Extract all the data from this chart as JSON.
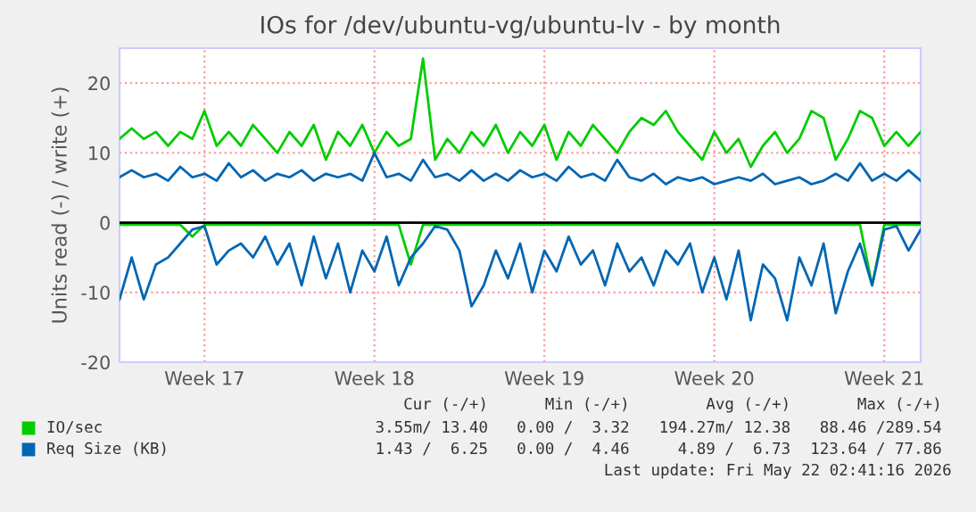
{
  "chart_data": {
    "type": "line",
    "title": "IOs for /dev/ubuntu-vg/ubuntu-lv - by month",
    "ylabel": "Units read (-) / write (+)",
    "categories": [
      null,
      null,
      null,
      null,
      null,
      null,
      null,
      "Week 17",
      null,
      null,
      null,
      null,
      null,
      null,
      null,
      null,
      null,
      null,
      null,
      null,
      null,
      "Week 18",
      null,
      null,
      null,
      null,
      null,
      null,
      null,
      null,
      null,
      null,
      null,
      null,
      null,
      "Week 19",
      null,
      null,
      null,
      null,
      null,
      null,
      null,
      null,
      null,
      null,
      null,
      null,
      null,
      "Week 20",
      null,
      null,
      null,
      null,
      null,
      null,
      null,
      null,
      null,
      null,
      null,
      null,
      null,
      "Week 21",
      null,
      null,
      null
    ],
    "series": [
      {
        "name": "IO/sec",
        "color": "#00cc00",
        "values": [
          12,
          13.5,
          12,
          13,
          11,
          13,
          12,
          16,
          11,
          13,
          11,
          14,
          12,
          10,
          13,
          11,
          14,
          9,
          13,
          11,
          14,
          10,
          13,
          11,
          12,
          23.5,
          9,
          12,
          10,
          13,
          11,
          14,
          10,
          13,
          11,
          14,
          9,
          13,
          11,
          14,
          12,
          10,
          13,
          15,
          14,
          16,
          13,
          11,
          9,
          13,
          10,
          12,
          8,
          11,
          13,
          10,
          12,
          16,
          15,
          9,
          12,
          16,
          15,
          11,
          13,
          11,
          13
        ]
      },
      {
        "color": "#00cc00",
        "values": [
          -0.3,
          -0.3,
          -0.3,
          -0.3,
          -0.3,
          -0.3,
          -2,
          -0.3,
          -0.3,
          -0.3,
          -0.3,
          -0.3,
          -0.3,
          -0.3,
          -0.3,
          -0.3,
          -0.3,
          -0.3,
          -0.3,
          -0.3,
          -0.3,
          -0.3,
          -0.3,
          -0.3,
          -6,
          -0.3,
          -0.3,
          -0.3,
          -0.3,
          -0.3,
          -0.3,
          -0.3,
          -0.3,
          -0.3,
          -0.3,
          -0.3,
          -0.3,
          -0.3,
          -0.3,
          -0.3,
          -0.3,
          -0.3,
          -0.3,
          -0.3,
          -0.3,
          -0.3,
          -0.3,
          -0.3,
          -0.3,
          -0.3,
          -0.3,
          -0.3,
          -0.3,
          -0.3,
          -0.3,
          -0.3,
          -0.3,
          -0.3,
          -0.3,
          -0.3,
          -0.3,
          -0.3,
          -9,
          -0.3,
          -0.3,
          -0.3,
          -0.3
        ]
      },
      {
        "name": "Req Size (KB)",
        "color": "#0066b3",
        "values": [
          6.5,
          7.5,
          6.5,
          7,
          6,
          8,
          6.5,
          7,
          6,
          8.5,
          6.5,
          7.5,
          6,
          7,
          6.5,
          7.5,
          6,
          7,
          6.5,
          7,
          6,
          10,
          6.5,
          7,
          6,
          9,
          6.5,
          7,
          6,
          7.5,
          6,
          7,
          6,
          7.5,
          6.5,
          7,
          6,
          8,
          6.5,
          7,
          6,
          9,
          6.5,
          6,
          7,
          5.5,
          6.5,
          6,
          6.5,
          5.5,
          6,
          6.5,
          6,
          7,
          5.5,
          6,
          6.5,
          5.5,
          6,
          7,
          6,
          8.5,
          6,
          7,
          6,
          7.5,
          6
        ]
      },
      {
        "color": "#0066b3",
        "values": [
          -11,
          -5,
          -11,
          -6,
          -5,
          -3,
          -1,
          -0.5,
          -6,
          -4,
          -3,
          -5,
          -2,
          -6,
          -3,
          -9,
          -2,
          -8,
          -3,
          -10,
          -4,
          -7,
          -2,
          -9,
          -5,
          -3,
          -0.5,
          -1,
          -4,
          -12,
          -9,
          -4,
          -8,
          -3,
          -10,
          -4,
          -7,
          -2,
          -6,
          -4,
          -9,
          -3,
          -7,
          -5,
          -9,
          -4,
          -6,
          -3,
          -10,
          -5,
          -11,
          -4,
          -14,
          -6,
          -8,
          -14,
          -5,
          -9,
          -3,
          -13,
          -7,
          -3,
          -9,
          -1,
          -0.5,
          -4,
          -1
        ]
      }
    ],
    "ylim": [
      -20,
      25
    ],
    "yticks": [
      -20,
      -10,
      0,
      10,
      20
    ],
    "grid": true,
    "legend": "bottom",
    "annotations": [
      "Cur (-/+)",
      "Min (-/+)",
      "Avg (-/+)",
      "Max (-/+)",
      "3.55m/ 13.40",
      "0.00 /  3.32",
      "194.27m/ 12.38",
      "88.46 /289.54",
      "1.43 /  6.25",
      "0.00 /  4.46",
      "4.89 /  6.73",
      "123.64 / 77.86",
      "Last update: Fri May 22 02:41:16 2026"
    ]
  }
}
